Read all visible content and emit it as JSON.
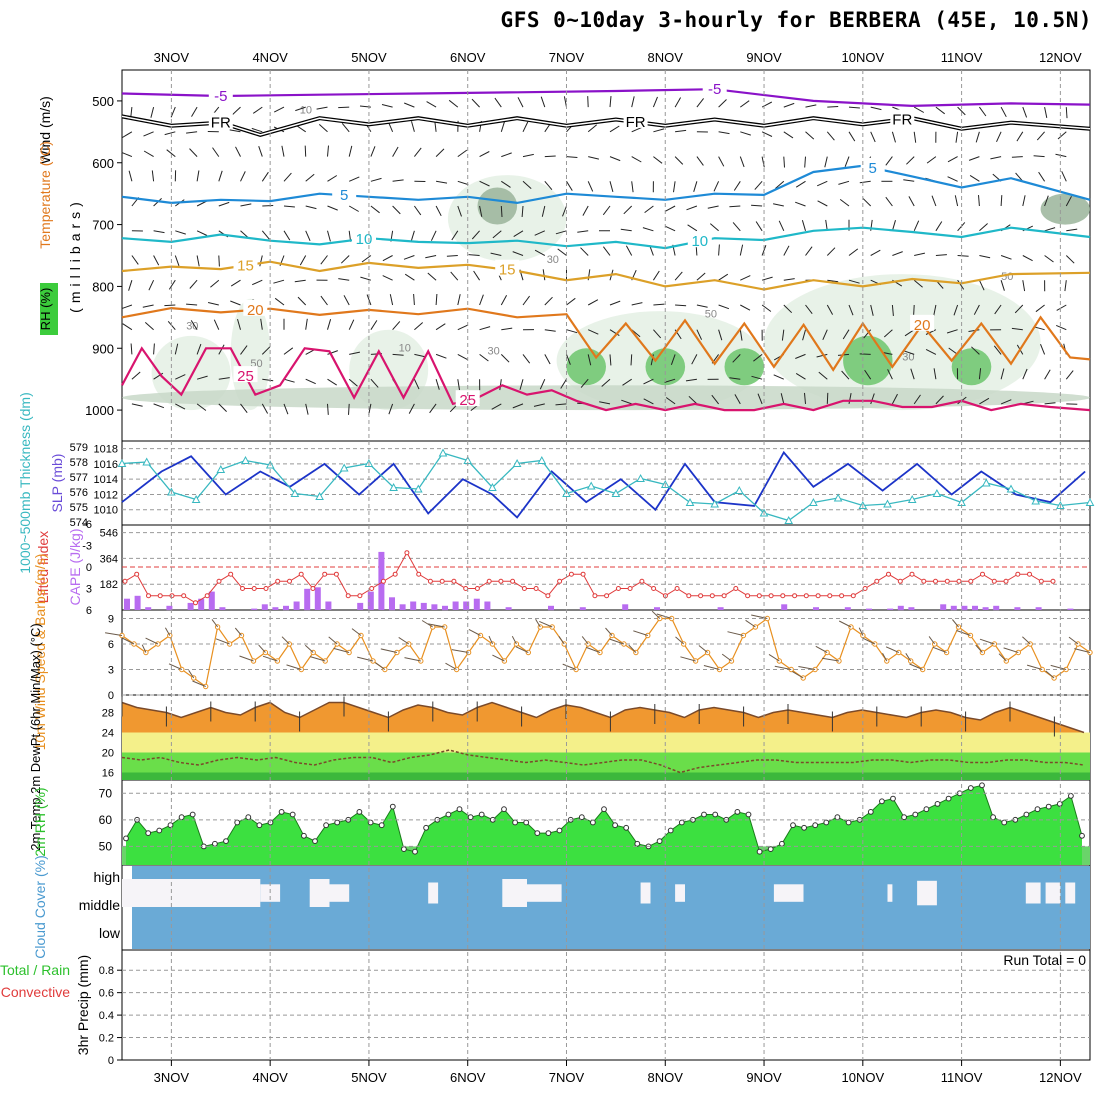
{
  "title": "GFS 0~10day 3-hourly for BERBERA (45E, 10.5N)",
  "colors": {
    "purple": "#8a12c8",
    "black": "#000000",
    "blue": "#1e8ad6",
    "cyan": "#1fb8c8",
    "gold": "#dca028",
    "orange": "#e0781c",
    "magenta": "#d8146e",
    "slp": "#1c34c8",
    "thick": "#38b8c0",
    "cape": "#b86cf0",
    "li": "#e03c3c",
    "windspeed": "#e89020",
    "temp": "#f09830",
    "rh": "#3ce040",
    "cloud": "#6aaad6",
    "grid": "#999999"
  },
  "chart_data": [
    {
      "type": "line",
      "panel": "upper-air",
      "ylabel": "(millibars)",
      "legend_labels": [
        "Wind (m/s)",
        "Temperature (°C)",
        "RH (%)"
      ],
      "yticks": [
        500,
        600,
        700,
        800,
        900,
        1000
      ],
      "ylim": [
        450,
        1050
      ],
      "date_labels": [
        "3NOV",
        "4NOV",
        "5NOV",
        "6NOV",
        "7NOV",
        "8NOV",
        "9NOV",
        "10NOV",
        "11NOV",
        "12NOV"
      ],
      "isotherms": [
        {
          "name": "-5",
          "color": "purple",
          "days": [
            2.5,
            3.5,
            4.5,
            5.5,
            6.5,
            7.5,
            8.5,
            9.5,
            10.5,
            11.5,
            12.3
          ],
          "values": [
            488,
            492,
            490,
            488,
            486,
            484,
            481,
            500,
            508,
            504,
            506
          ],
          "label_at": [
            3.5,
            8.5
          ]
        },
        {
          "name": "FR",
          "color": "black",
          "days": [
            2.5,
            3.0,
            3.5,
            3.9,
            4.5,
            5.0,
            5.5,
            6.0,
            6.5,
            7.0,
            7.5,
            8.0,
            8.5,
            9.0,
            9.5,
            10.0,
            10.5,
            11.0,
            11.5,
            12.3
          ],
          "values": [
            525,
            540,
            535,
            555,
            528,
            538,
            528,
            540,
            528,
            540,
            530,
            540,
            530,
            540,
            528,
            538,
            528,
            545,
            535,
            545
          ],
          "label_at": [
            3.5,
            7.7,
            10.4
          ]
        },
        {
          "name": "5",
          "color": "blue",
          "days": [
            2.5,
            3.0,
            3.5,
            4.0,
            4.5,
            5.0,
            5.5,
            6.0,
            6.5,
            7.0,
            7.5,
            8.0,
            8.5,
            9.0,
            9.5,
            10.0,
            10.5,
            11.0,
            11.5,
            12.3
          ],
          "values": [
            655,
            665,
            660,
            662,
            650,
            655,
            660,
            655,
            665,
            650,
            655,
            660,
            650,
            652,
            615,
            605,
            622,
            640,
            625,
            660
          ],
          "label_at": [
            4.75,
            10.1
          ]
        },
        {
          "name": "10",
          "color": "cyan",
          "days": [
            2.5,
            3.0,
            3.5,
            4.0,
            4.5,
            5.0,
            5.5,
            6.0,
            6.5,
            7.0,
            7.5,
            8.0,
            8.5,
            9.0,
            9.5,
            10.0,
            10.5,
            11.0,
            11.5,
            12.3
          ],
          "values": [
            722,
            728,
            716,
            726,
            732,
            722,
            728,
            730,
            726,
            735,
            728,
            738,
            722,
            725,
            710,
            705,
            712,
            720,
            705,
            720
          ],
          "label_at": [
            4.95,
            8.35
          ]
        },
        {
          "name": "15",
          "color": "gold",
          "days": [
            2.5,
            3.0,
            3.5,
            4.0,
            4.5,
            5.0,
            5.5,
            6.0,
            6.5,
            7.0,
            7.5,
            8.0,
            8.5,
            9.0,
            9.5,
            10.0,
            10.5,
            11.0,
            11.5,
            12.3
          ],
          "values": [
            775,
            768,
            772,
            760,
            775,
            762,
            770,
            765,
            775,
            790,
            780,
            800,
            790,
            805,
            790,
            800,
            788,
            795,
            780,
            778
          ],
          "label_at": [
            3.75,
            6.4
          ]
        },
        {
          "name": "20",
          "color": "orange",
          "days": [
            2.5,
            3.0,
            3.5,
            4.0,
            4.5,
            5.0,
            5.5,
            6.0,
            6.5,
            7.0,
            7.3,
            7.6,
            7.9,
            8.2,
            8.5,
            8.8,
            9.1,
            9.4,
            9.7,
            10.0,
            10.3,
            10.6,
            10.9,
            11.2,
            11.5,
            11.8,
            12.1,
            12.3
          ],
          "values": [
            850,
            835,
            842,
            836,
            846,
            838,
            845,
            836,
            850,
            845,
            915,
            860,
            920,
            855,
            925,
            860,
            930,
            862,
            935,
            860,
            930,
            862,
            920,
            860,
            925,
            850,
            915,
            918
          ],
          "label_at": [
            3.85,
            10.6
          ]
        },
        {
          "name": "25",
          "color": "magenta",
          "days": [
            2.5,
            2.7,
            2.9,
            3.1,
            3.35,
            3.6,
            3.85,
            4.1,
            4.35,
            4.6,
            4.85,
            5.1,
            5.35,
            5.6,
            5.85,
            6.1,
            6.35,
            6.6,
            6.85,
            7.1,
            7.4,
            7.7,
            8.0,
            8.3,
            8.6,
            8.9,
            9.2,
            9.5,
            9.8,
            10.1,
            10.4,
            10.7,
            11.0,
            11.3,
            11.6,
            11.9,
            12.3
          ],
          "values": [
            960,
            900,
            945,
            975,
            900,
            900,
            975,
            960,
            900,
            905,
            980,
            905,
            980,
            905,
            990,
            980,
            960,
            975,
            968,
            985,
            1000,
            990,
            1000,
            990,
            1000,
            1000,
            990,
            1000,
            985,
            985,
            995,
            995,
            985,
            1000,
            990,
            995,
            1000
          ],
          "label_at": [
            3.75,
            6.0
          ]
        }
      ],
      "rh_contours": [
        "10",
        "30",
        "50",
        "10",
        "30",
        "30",
        "50",
        "30",
        "50"
      ]
    },
    {
      "type": "line",
      "panel": "slp-thickness",
      "ylabel_left": "1000~500mb Thickness (dm)",
      "ylabel_right": "SLP (mb)",
      "yticks_thickness": [
        "579",
        "578",
        "577",
        "576",
        "575",
        "574"
      ],
      "yticks_slp": [
        "1018",
        "1016",
        "1014",
        "1012",
        "1010"
      ],
      "series": [
        {
          "name": "SLP (mb)",
          "days": [
            2.5,
            2.9,
            3.2,
            3.55,
            3.9,
            4.2,
            4.55,
            4.9,
            5.25,
            5.6,
            5.95,
            6.25,
            6.5,
            6.85,
            7.2,
            7.55,
            7.9,
            8.2,
            8.5,
            8.9,
            9.2,
            9.5,
            9.85,
            10.2,
            10.55,
            10.9,
            11.2,
            11.55,
            11.9,
            12.25
          ],
          "values": [
            1011,
            1015,
            1017,
            1012,
            1015,
            1013,
            1016,
            1012,
            1016,
            1009.5,
            1014,
            1012,
            1009,
            1015,
            1011,
            1014,
            1010,
            1016,
            1011,
            1010.5,
            1017.5,
            1013,
            1016,
            1012.5,
            1016,
            1012,
            1015,
            1012,
            1011,
            1015
          ]
        },
        {
          "name": "Thickness (dm)",
          "days": [
            2.5,
            2.75,
            3.0,
            3.25,
            3.5,
            3.75,
            4.0,
            4.25,
            4.5,
            4.75,
            5.0,
            5.25,
            5.5,
            5.75,
            6.0,
            6.25,
            6.5,
            6.75,
            7.0,
            7.25,
            7.5,
            7.75,
            8.0,
            8.25,
            8.5,
            8.75,
            9.0,
            9.25,
            9.5,
            9.75,
            10.0,
            10.25,
            10.5,
            10.75,
            11.0,
            11.25,
            11.5,
            11.75,
            12.0,
            12.3
          ],
          "values": [
            577.9,
            578,
            576,
            575.5,
            577.5,
            578.1,
            577.8,
            575.9,
            575.7,
            577.6,
            577.9,
            576.3,
            576.2,
            578.6,
            578.1,
            576.3,
            577.9,
            578.1,
            575.9,
            576.4,
            575.9,
            576.9,
            576.5,
            575.3,
            575.2,
            576.1,
            574.6,
            574.1,
            575.3,
            575.6,
            575.1,
            575.2,
            575.5,
            575.9,
            575.3,
            576.6,
            576.2,
            575.4,
            575.1,
            575.3
          ]
        }
      ]
    },
    {
      "type": "bar",
      "panel": "cape-li",
      "ylabel_left": "Lifted Index",
      "ylabel_right": "CAPE (J/kg)",
      "yticks_li": [
        "-6",
        "-3",
        "0",
        "3",
        "6"
      ],
      "yticks_cape": [
        "546",
        "364",
        "182"
      ],
      "cape_values": [
        80,
        100,
        20,
        0,
        30,
        0,
        50,
        80,
        130,
        20,
        0,
        0,
        10,
        40,
        20,
        30,
        60,
        150,
        160,
        60,
        0,
        0,
        50,
        130,
        410,
        90,
        40,
        60,
        50,
        40,
        30,
        60,
        60,
        80,
        60,
        0,
        20,
        0,
        0,
        0,
        30,
        0,
        0,
        20,
        0,
        0,
        0,
        40,
        0,
        0,
        20,
        0,
        0,
        0,
        0,
        0,
        20,
        0,
        0,
        0,
        0,
        0,
        40,
        0,
        0,
        20,
        0,
        0,
        20,
        0,
        10,
        0,
        10,
        30,
        20,
        0,
        0,
        40,
        30,
        30,
        30,
        20,
        30,
        0,
        20,
        0,
        20,
        0,
        0,
        10,
        0
      ],
      "li_values": [
        2,
        1,
        4,
        4,
        4,
        4,
        5,
        4,
        2,
        1,
        3,
        3,
        3,
        2,
        2,
        1,
        3,
        1,
        1,
        4,
        4,
        3,
        2,
        1,
        -2,
        1,
        2,
        2,
        2,
        3,
        3,
        2,
        2,
        2,
        3,
        3,
        4,
        2,
        1,
        1,
        4,
        4,
        3,
        3,
        2,
        3,
        4,
        3,
        4,
        4,
        4,
        4,
        3,
        4,
        4,
        4,
        4,
        4,
        4,
        4,
        4,
        4,
        4,
        3,
        2,
        1,
        2,
        1,
        2,
        2,
        2,
        2,
        2,
        1,
        2,
        2,
        1,
        1,
        2,
        2
      ]
    },
    {
      "type": "line",
      "panel": "wind10m",
      "ylabel": "10m Wind Speed & Barbs (m/s)",
      "yticks": [
        "9",
        "6",
        "3",
        "0"
      ],
      "ylim": [
        0,
        10
      ],
      "values": [
        7,
        6,
        5,
        6,
        7,
        3,
        2,
        1,
        8,
        6,
        7,
        4,
        5,
        4,
        6,
        3,
        5,
        4,
        6,
        5,
        7,
        4,
        3,
        5,
        6,
        4,
        8,
        8,
        3,
        5,
        7,
        6,
        4,
        6,
        5,
        8,
        8,
        6,
        3,
        6,
        5,
        7,
        6,
        5,
        7,
        9,
        9,
        6,
        4,
        5,
        3,
        4,
        7,
        8,
        9,
        4,
        3,
        2,
        3,
        5,
        4,
        8,
        7,
        6,
        4,
        5,
        4,
        3,
        6,
        5,
        8,
        7,
        5,
        6,
        4,
        5,
        6,
        3,
        2,
        3,
        6,
        5
      ]
    },
    {
      "type": "area",
      "panel": "temp-dewpt",
      "ylabel": "2m Temp 2m DewPt (6hr Min/Max) (°C)",
      "yticks": [
        "28",
        "24",
        "20",
        "16"
      ],
      "ylim": [
        14.5,
        31.5
      ],
      "temp_values": [
        30,
        29,
        28.5,
        28,
        27,
        28,
        29,
        28,
        27.5,
        29,
        30,
        28,
        27,
        28.5,
        30,
        30,
        29,
        28,
        27,
        28.5,
        29.5,
        29,
        28,
        27.5,
        29,
        30,
        29,
        28,
        27,
        28.5,
        29.5,
        29,
        28,
        27,
        28.5,
        29,
        28.5,
        28,
        27,
        28.5,
        29,
        28.5,
        28,
        27,
        28,
        28.5,
        28,
        27.5,
        27,
        28,
        28.5,
        28,
        27.5,
        27,
        28,
        28.5,
        28,
        27,
        26.5,
        28,
        29,
        28,
        27,
        26,
        25,
        24
      ],
      "dewpt_values": [
        19,
        18.5,
        19,
        18,
        17.5,
        18.5,
        19,
        18.5,
        19,
        18,
        17.5,
        18.5,
        19,
        19,
        18,
        19,
        19.5,
        20.5,
        19.5,
        19,
        18.5,
        18,
        18.5,
        18,
        17.5,
        18,
        18.5,
        18.5,
        17.5,
        16,
        17,
        17.5,
        18,
        18.5,
        18.5,
        18,
        18,
        18,
        18,
        18.5,
        18.5,
        18,
        18.5,
        18.5,
        18,
        18,
        18.5,
        18.5,
        18,
        18,
        17.5
      ]
    },
    {
      "type": "area",
      "panel": "rh2m",
      "ylabel": "2m RH (%)",
      "yticks": [
        "70",
        "60",
        "50"
      ],
      "ylim": [
        43,
        75
      ],
      "values": [
        53,
        60,
        55,
        56,
        58,
        61,
        62,
        50,
        51,
        52,
        59,
        61,
        58,
        59,
        63,
        62,
        54,
        52,
        58,
        59,
        60,
        63,
        59,
        58,
        65,
        49,
        48,
        57,
        60,
        62,
        64,
        61,
        62,
        60,
        64,
        59,
        59,
        55,
        55,
        56,
        60,
        61,
        59,
        64,
        58,
        57,
        51,
        50,
        52,
        56,
        59,
        60,
        62,
        62,
        60,
        63,
        62,
        48,
        49,
        51,
        58,
        57,
        58,
        59,
        61,
        59,
        60,
        63,
        67,
        68,
        61,
        62,
        64,
        66,
        68,
        70,
        72,
        73,
        61,
        59,
        60,
        62,
        64,
        65,
        66,
        69,
        54
      ]
    },
    {
      "type": "bar",
      "panel": "cloud",
      "ylabel": "Cloud Cover (%)",
      "yticks": [
        "high",
        "middle",
        "low"
      ],
      "high_cloud_segments": [
        [
          2.5,
          3.9,
          0.4
        ],
        [
          3.9,
          4.1,
          0.25
        ],
        [
          4.4,
          4.6,
          0.4
        ],
        [
          4.6,
          4.8,
          0.25
        ],
        [
          5.6,
          5.7,
          0.3
        ],
        [
          6.35,
          6.6,
          0.4
        ],
        [
          6.6,
          6.95,
          0.25
        ],
        [
          7.75,
          7.85,
          0.3
        ],
        [
          8.1,
          8.2,
          0.25
        ],
        [
          9.1,
          9.4,
          0.25
        ],
        [
          10.25,
          10.3,
          0.25
        ],
        [
          10.55,
          10.75,
          0.35
        ],
        [
          11.65,
          11.8,
          0.3
        ],
        [
          11.85,
          12.0,
          0.3
        ],
        [
          12.05,
          12.15,
          0.3
        ]
      ]
    },
    {
      "type": "bar",
      "panel": "precip",
      "ylabel": "3hr Precip (mm)",
      "legend_labels": [
        "Total / Rain",
        "Convective"
      ],
      "yticks": [
        "0.8",
        "0.6",
        "0.4",
        "0.2",
        "0"
      ],
      "annotation": "Run Total = 0",
      "values": []
    }
  ]
}
